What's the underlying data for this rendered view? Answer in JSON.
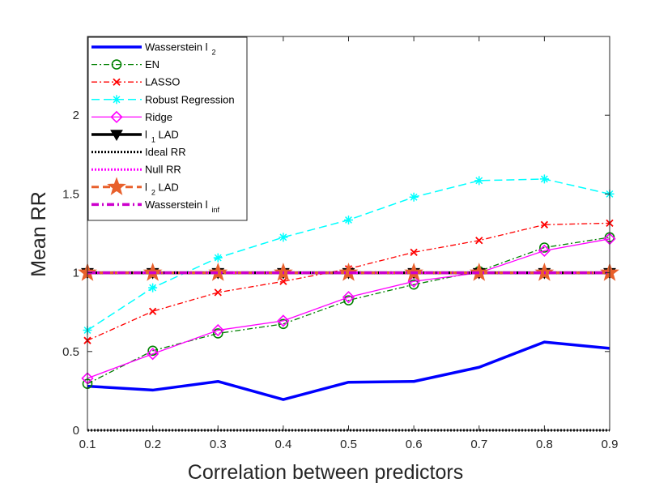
{
  "chart_data": {
    "type": "line",
    "title": "",
    "xlabel": "Correlation between predictors",
    "ylabel": "Mean RR",
    "xlim": [
      0.1,
      0.9
    ],
    "ylim": [
      0,
      2.5
    ],
    "x": [
      0.1,
      0.2,
      0.3,
      0.4,
      0.5,
      0.6,
      0.7,
      0.8,
      0.9
    ],
    "xticks": [
      "0.1",
      "0.2",
      "0.3",
      "0.4",
      "0.5",
      "0.6",
      "0.7",
      "0.8",
      "0.9"
    ],
    "yticks": [
      {
        "value": 0,
        "label": "0"
      },
      {
        "value": 0.5,
        "label": "0.5"
      },
      {
        "value": 1,
        "label": "1"
      },
      {
        "value": 1.5,
        "label": "1.5"
      },
      {
        "value": 2,
        "label": "2"
      }
    ],
    "legend_position": "top-left",
    "series": [
      {
        "name": "Wasserstein l",
        "sub": "2",
        "color": "#0000ff",
        "dash": "",
        "width": 3.5,
        "marker": "none",
        "values": [
          0.28,
          0.255,
          0.31,
          0.195,
          0.305,
          0.31,
          0.4,
          0.56,
          0.52
        ]
      },
      {
        "name": "EN",
        "sub": "",
        "color": "#008000",
        "dash": "7,3,2,3",
        "width": 1.3,
        "marker": "circle",
        "values": [
          0.295,
          0.505,
          0.615,
          0.675,
          0.825,
          0.925,
          1.01,
          1.16,
          1.225
        ]
      },
      {
        "name": "LASSO",
        "sub": "",
        "color": "#ff0000",
        "dash": "7,3,2,3",
        "width": 1.3,
        "marker": "x",
        "values": [
          0.57,
          0.755,
          0.875,
          0.945,
          1.025,
          1.13,
          1.205,
          1.305,
          1.315
        ]
      },
      {
        "name": "Robust Regression",
        "sub": "",
        "color": "#00ffff",
        "dash": "10,5",
        "width": 1.5,
        "marker": "star",
        "values": [
          0.635,
          0.905,
          1.095,
          1.225,
          1.335,
          1.48,
          1.585,
          1.595,
          1.5
        ]
      },
      {
        "name": "Ridge",
        "sub": "",
        "color": "#ff00ff",
        "dash": "",
        "width": 1.3,
        "marker": "diamond",
        "values": [
          0.33,
          0.485,
          0.635,
          0.695,
          0.845,
          0.945,
          1.0,
          1.14,
          1.215
        ]
      },
      {
        "name": "l",
        "sub": "1",
        "suffix": " LAD",
        "color": "#000000",
        "dash": "",
        "width": 3.5,
        "marker": "triangle-down",
        "values": [
          1,
          1,
          1,
          1,
          1,
          1,
          1,
          1,
          1
        ]
      },
      {
        "name": "Ideal RR",
        "sub": "",
        "color": "#000000",
        "dash": "2,2",
        "width": 3,
        "marker": "none",
        "values": [
          0,
          0,
          0,
          0,
          0,
          0,
          0,
          0,
          0
        ]
      },
      {
        "name": "Null RR",
        "sub": "",
        "color": "#ff00ff",
        "dash": "2,2",
        "width": 3,
        "marker": "none",
        "values": [
          1,
          1,
          1,
          1,
          1,
          1,
          1,
          1,
          1
        ]
      },
      {
        "name": "l",
        "sub": "2",
        "suffix": " LAD",
        "color": "#e8602c",
        "dash": "9,5",
        "width": 3,
        "marker": "pentagram",
        "values": [
          1,
          1,
          1,
          1,
          1,
          1,
          1,
          1,
          1
        ]
      },
      {
        "name": "Wasserstein l",
        "sub": "inf",
        "color": "#cc00cc",
        "dash": "9,4,2,4",
        "width": 3.5,
        "marker": "none",
        "values": [
          1,
          1,
          1,
          1,
          1,
          1,
          1,
          1,
          1
        ]
      }
    ]
  }
}
